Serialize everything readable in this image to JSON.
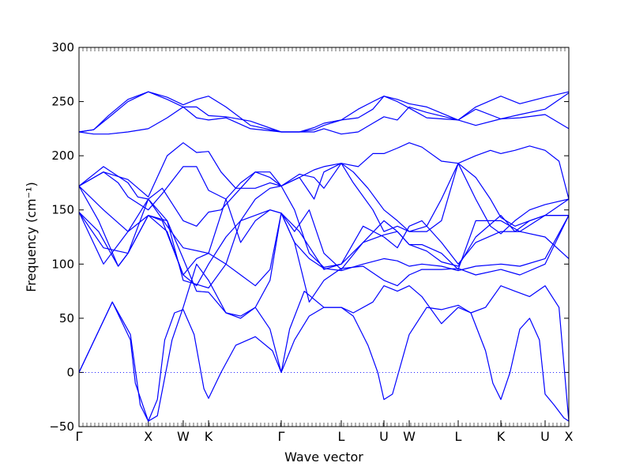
{
  "chart_data": {
    "type": "line",
    "title": "",
    "xlabel": "Wave vector",
    "ylabel": "Frequency (cm⁻¹)",
    "ylim": [
      -50,
      300
    ],
    "yticks": [
      -50,
      0,
      50,
      100,
      150,
      200,
      250,
      300
    ],
    "xlim": [
      0,
      1
    ],
    "high_symmetry_points": [
      {
        "label": "Γ",
        "pos": 0.0
      },
      {
        "label": "X",
        "pos": 0.1415
      },
      {
        "label": "W",
        "pos": 0.2128
      },
      {
        "label": "K",
        "pos": 0.2645
      },
      {
        "label": "Γ",
        "pos": 0.4129
      },
      {
        "label": "L",
        "pos": 0.5355
      },
      {
        "label": "U",
        "pos": 0.6226
      },
      {
        "label": "W",
        "pos": 0.6742
      },
      {
        "label": "L",
        "pos": 0.7742
      },
      {
        "label": "K",
        "pos": 0.8613
      },
      {
        "label": "U",
        "pos": 0.9516
      },
      {
        "label": "X",
        "pos": 1.0
      }
    ],
    "zero_line": {
      "y": 0,
      "style": "dotted"
    },
    "line_color": "#0000ff",
    "series": [
      {
        "x": [
          0.0,
          0.068,
          0.105,
          0.115,
          0.1415,
          0.16,
          0.175,
          0.195,
          0.2128,
          0.235,
          0.255,
          0.2645,
          0.29,
          0.32,
          0.36,
          0.395,
          0.4129,
          0.44,
          0.47,
          0.5,
          0.5355,
          0.56,
          0.59,
          0.61,
          0.6226,
          0.64,
          0.6742,
          0.71,
          0.74,
          0.7742,
          0.8,
          0.83,
          0.845,
          0.8613,
          0.88,
          0.9,
          0.92,
          0.94,
          0.9516,
          0.97,
          0.99,
          1.0
        ],
        "y": [
          0,
          65,
          30,
          -10,
          -45,
          -25,
          30,
          55,
          58,
          35,
          -15,
          -24,
          0,
          25,
          33,
          20,
          0,
          30,
          52,
          60,
          60,
          52,
          25,
          0,
          -25,
          -20,
          35,
          60,
          58,
          62,
          55,
          20,
          -10,
          -25,
          0,
          40,
          50,
          30,
          -20,
          -30,
          -42,
          -45
        ]
      },
      {
        "x": [
          0.0,
          0.068,
          0.105,
          0.125,
          0.1415,
          0.16,
          0.19,
          0.2128,
          0.24,
          0.2645,
          0.3,
          0.33,
          0.36,
          0.39,
          0.4129,
          0.43,
          0.46,
          0.5,
          0.5355,
          0.56,
          0.6,
          0.6226,
          0.65,
          0.6742,
          0.7,
          0.74,
          0.7742,
          0.8,
          0.83,
          0.8613,
          0.89,
          0.92,
          0.9516,
          0.98,
          1.0
        ],
        "y": [
          0,
          65,
          35,
          -30,
          -45,
          -40,
          30,
          60,
          100,
          85,
          55,
          50,
          60,
          40,
          0,
          40,
          75,
          60,
          60,
          55,
          65,
          80,
          75,
          80,
          70,
          45,
          60,
          55,
          60,
          80,
          75,
          70,
          80,
          60,
          -45
        ]
      },
      {
        "x": [
          0.0,
          0.05,
          0.1,
          0.1415,
          0.18,
          0.2128,
          0.24,
          0.2645,
          0.3,
          0.33,
          0.36,
          0.39,
          0.4129,
          0.44,
          0.47,
          0.5,
          0.5355,
          0.58,
          0.6226,
          0.65,
          0.6742,
          0.7,
          0.74,
          0.7742,
          0.81,
          0.8613,
          0.9,
          0.9516,
          1.0
        ],
        "y": [
          148,
          100,
          130,
          145,
          140,
          105,
          75,
          74,
          55,
          52,
          60,
          85,
          147,
          120,
          65,
          85,
          96,
          98,
          85,
          80,
          90,
          95,
          95,
          96,
          90,
          95,
          90,
          100,
          145
        ]
      },
      {
        "x": [
          0.0,
          0.05,
          0.1,
          0.1415,
          0.18,
          0.2128,
          0.24,
          0.2645,
          0.3,
          0.33,
          0.36,
          0.39,
          0.4129,
          0.44,
          0.47,
          0.5,
          0.5355,
          0.58,
          0.6226,
          0.65,
          0.6742,
          0.7,
          0.74,
          0.7742,
          0.81,
          0.8613,
          0.9,
          0.9516,
          1.0
        ],
        "y": [
          148,
          115,
          110,
          145,
          130,
          90,
          105,
          110,
          100,
          90,
          80,
          95,
          147,
          120,
          105,
          96,
          94,
          100,
          105,
          103,
          98,
          100,
          98,
          94,
          98,
          100,
          98,
          105,
          145
        ]
      },
      {
        "x": [
          0.0,
          0.04,
          0.08,
          0.1,
          0.1415,
          0.18,
          0.2128,
          0.2645,
          0.3,
          0.33,
          0.36,
          0.39,
          0.4129,
          0.44,
          0.47,
          0.5,
          0.5355,
          0.58,
          0.6226,
          0.65,
          0.6742,
          0.7,
          0.74,
          0.7742,
          0.81,
          0.8613,
          0.9,
          0.9516,
          1.0
        ],
        "y": [
          172,
          140,
          98,
          110,
          160,
          140,
          85,
          78,
          100,
          140,
          160,
          170,
          172,
          150,
          110,
          97,
          100,
          135,
          125,
          115,
          135,
          140,
          120,
          100,
          120,
          130,
          130,
          125,
          105
        ]
      },
      {
        "x": [
          0.0,
          0.05,
          0.1,
          0.1415,
          0.18,
          0.2128,
          0.2645,
          0.3,
          0.33,
          0.36,
          0.39,
          0.4129,
          0.44,
          0.47,
          0.5,
          0.5355,
          0.58,
          0.6226,
          0.65,
          0.6742,
          0.7,
          0.74,
          0.7742,
          0.81,
          0.8613,
          0.9,
          0.9516,
          1.0
        ],
        "y": [
          172,
          150,
          130,
          160,
          135,
          115,
          110,
          160,
          120,
          140,
          150,
          147,
          130,
          150,
          110,
          95,
          120,
          127,
          130,
          118,
          118,
          110,
          95,
          140,
          140,
          130,
          145,
          160
        ]
      },
      {
        "x": [
          0.0,
          0.04,
          0.08,
          0.1,
          0.1415,
          0.17,
          0.2128,
          0.24,
          0.2645,
          0.3,
          0.33,
          0.36,
          0.39,
          0.4129,
          0.45,
          0.5,
          0.5355,
          0.58,
          0.6226,
          0.65,
          0.6742,
          0.71,
          0.74,
          0.7742,
          0.81,
          0.8613,
          0.89,
          0.92,
          0.9516,
          1.0
        ],
        "y": [
          148,
          130,
          98,
          110,
          145,
          140,
          90,
          80,
          100,
          125,
          140,
          145,
          150,
          147,
          130,
          95,
          100,
          120,
          140,
          130,
          118,
          112,
          102,
          98,
          125,
          145,
          130,
          140,
          145,
          145
        ]
      },
      {
        "x": [
          0.0,
          0.05,
          0.08,
          0.1,
          0.1415,
          0.17,
          0.2128,
          0.24,
          0.2645,
          0.3,
          0.33,
          0.36,
          0.39,
          0.4129,
          0.45,
          0.48,
          0.5,
          0.5355,
          0.56,
          0.59,
          0.6226,
          0.65,
          0.6742,
          0.71,
          0.74,
          0.7742,
          0.81,
          0.84,
          0.8613,
          0.89,
          0.92,
          0.9516,
          1.0
        ],
        "y": [
          172,
          185,
          175,
          162,
          150,
          165,
          190,
          190,
          168,
          160,
          175,
          185,
          180,
          172,
          183,
          180,
          170,
          193,
          185,
          170,
          150,
          140,
          130,
          135,
          160,
          193,
          180,
          160,
          143,
          135,
          140,
          145,
          145
        ]
      },
      {
        "x": [
          0.0,
          0.05,
          0.1,
          0.12,
          0.1415,
          0.17,
          0.2128,
          0.24,
          0.2645,
          0.29,
          0.33,
          0.36,
          0.39,
          0.4129,
          0.45,
          0.48,
          0.5,
          0.5355,
          0.56,
          0.6,
          0.6226,
          0.65,
          0.6742,
          0.71,
          0.74,
          0.7742,
          0.81,
          0.84,
          0.8613,
          0.89,
          0.92,
          0.9516,
          1.0
        ],
        "y": [
          172,
          190,
          175,
          162,
          160,
          170,
          140,
          135,
          148,
          150,
          170,
          185,
          185,
          172,
          180,
          160,
          185,
          193,
          175,
          150,
          130,
          135,
          130,
          130,
          140,
          193,
          160,
          135,
          128,
          140,
          150,
          155,
          160
        ]
      },
      {
        "x": [
          0.0,
          0.05,
          0.1,
          0.1415,
          0.18,
          0.2128,
          0.24,
          0.2645,
          0.29,
          0.32,
          0.36,
          0.39,
          0.4129,
          0.45,
          0.48,
          0.5,
          0.5355,
          0.57,
          0.6,
          0.6226,
          0.65,
          0.6742,
          0.7,
          0.74,
          0.7742,
          0.81,
          0.84,
          0.8613,
          0.89,
          0.92,
          0.9516,
          0.98,
          1.0
        ],
        "y": [
          172,
          185,
          178,
          162,
          200,
          212,
          203,
          204,
          185,
          170,
          170,
          175,
          172,
          180,
          187,
          190,
          193,
          190,
          202,
          202,
          207,
          212,
          208,
          195,
          193,
          200,
          205,
          202,
          205,
          209,
          205,
          195,
          160
        ]
      },
      {
        "x": [
          0.0,
          0.03,
          0.06,
          0.1,
          0.1415,
          0.18,
          0.2128,
          0.24,
          0.2645,
          0.3,
          0.35,
          0.4129,
          0.45,
          0.48,
          0.5,
          0.5355,
          0.57,
          0.6,
          0.6226,
          0.65,
          0.6742,
          0.71,
          0.7742,
          0.81,
          0.8613,
          0.9,
          0.9516,
          1.0
        ],
        "y": [
          222,
          220,
          220,
          222,
          225,
          235,
          245,
          235,
          233,
          235,
          225,
          222,
          222,
          222,
          225,
          220,
          222,
          230,
          236,
          233,
          245,
          240,
          233,
          228,
          234,
          235,
          238,
          225
        ]
      },
      {
        "x": [
          0.0,
          0.03,
          0.06,
          0.1,
          0.1415,
          0.18,
          0.2128,
          0.24,
          0.2645,
          0.3,
          0.35,
          0.4129,
          0.45,
          0.48,
          0.5,
          0.5355,
          0.57,
          0.6,
          0.6226,
          0.65,
          0.6742,
          0.71,
          0.7742,
          0.81,
          0.8613,
          0.9,
          0.9516,
          1.0
        ],
        "y": [
          222,
          224,
          235,
          250,
          259,
          252,
          245,
          245,
          237,
          236,
          232,
          222,
          222,
          226,
          230,
          233,
          243,
          250,
          255,
          250,
          244,
          235,
          233,
          243,
          234,
          238,
          243,
          258
        ]
      },
      {
        "x": [
          0.0,
          0.03,
          0.06,
          0.1,
          0.1415,
          0.18,
          0.2128,
          0.24,
          0.2645,
          0.3,
          0.35,
          0.4129,
          0.45,
          0.48,
          0.5,
          0.5355,
          0.57,
          0.6,
          0.6226,
          0.65,
          0.6742,
          0.71,
          0.7742,
          0.81,
          0.8613,
          0.9,
          0.9516,
          1.0
        ],
        "y": [
          222,
          224,
          237,
          252,
          259,
          254,
          247,
          252,
          255,
          245,
          228,
          222,
          222,
          224,
          228,
          233,
          235,
          243,
          255,
          252,
          248,
          245,
          233,
          245,
          255,
          248,
          254,
          259
        ]
      }
    ]
  }
}
